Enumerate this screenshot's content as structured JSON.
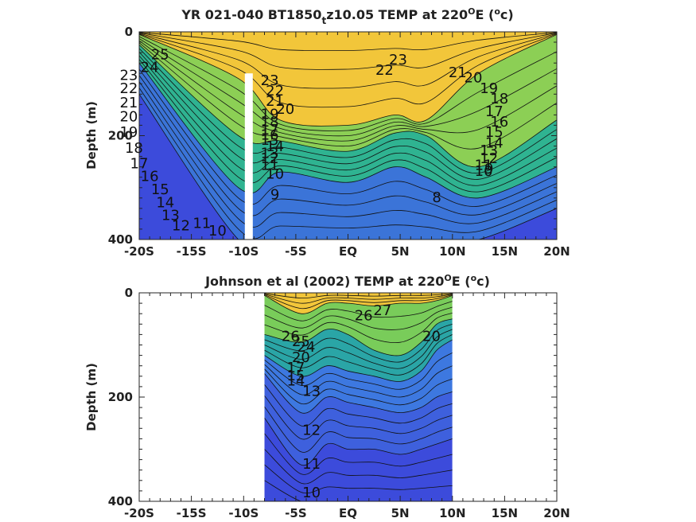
{
  "chart_data": [
    {
      "type": "heatmap",
      "panel": "top",
      "title_main": "YR 021-040 BT1850",
      "title_sub": "t",
      "title_rest": "z10.05 TEMP at 220",
      "title_sup_deg": "O",
      "title_end": "E (",
      "title_sup_unit": "o",
      "title_close": "c)",
      "ylabel": "Depth (m)",
      "xlim": [
        -20,
        20
      ],
      "ylim": [
        0,
        400
      ],
      "y_reversed": true,
      "x_ticks": [
        {
          "value": -20,
          "label": "-20S"
        },
        {
          "value": -15,
          "label": "-15S"
        },
        {
          "value": -10,
          "label": "-10S"
        },
        {
          "value": -5,
          "label": "-5S"
        },
        {
          "value": 0,
          "label": "EQ"
        },
        {
          "value": 5,
          "label": "5N"
        },
        {
          "value": 10,
          "label": "10N"
        },
        {
          "value": 15,
          "label": "15N"
        },
        {
          "value": 20,
          "label": "20N"
        }
      ],
      "y_ticks": [
        {
          "value": 0,
          "label": "0"
        },
        {
          "value": 200,
          "label": "200"
        },
        {
          "value": 400,
          "label": "400"
        }
      ],
      "data_columns": [
        -20,
        -10.5,
        -6.5,
        0,
        4.5,
        7.5,
        12.5,
        20
      ],
      "isotherm_depths": [
        [
          5,
          90,
          170,
          180,
          160,
          170,
          80,
          5
        ],
        [
          25,
          200,
          210,
          230,
          195,
          200,
          260,
          170
        ],
        [
          60,
          300,
          270,
          290,
          260,
          280,
          320,
          260
        ],
        [
          120,
          400,
          400,
          400,
          400,
          400,
          400,
          340
        ]
      ],
      "contour_labels": [
        {
          "x": -18,
          "y": 45,
          "text": "25"
        },
        {
          "x": -19,
          "y": 70,
          "text": "24"
        },
        {
          "x": -21,
          "y": 85,
          "text": "23"
        },
        {
          "x": -21,
          "y": 110,
          "text": "22"
        },
        {
          "x": -21,
          "y": 138,
          "text": "21"
        },
        {
          "x": -21,
          "y": 165,
          "text": "20"
        },
        {
          "x": -21,
          "y": 195,
          "text": "19"
        },
        {
          "x": -20.5,
          "y": 225,
          "text": "18"
        },
        {
          "x": -20,
          "y": 255,
          "text": "17"
        },
        {
          "x": -19,
          "y": 280,
          "text": "16"
        },
        {
          "x": -18,
          "y": 305,
          "text": "15"
        },
        {
          "x": -17.5,
          "y": 330,
          "text": "14"
        },
        {
          "x": -17,
          "y": 355,
          "text": "13"
        },
        {
          "x": -16,
          "y": 375,
          "text": "12"
        },
        {
          "x": -14,
          "y": 370,
          "text": "11"
        },
        {
          "x": -12.5,
          "y": 385,
          "text": "10"
        },
        {
          "x": -7.5,
          "y": 95,
          "text": "23"
        },
        {
          "x": -7,
          "y": 115,
          "text": "22"
        },
        {
          "x": -7,
          "y": 135,
          "text": "21"
        },
        {
          "x": -6,
          "y": 150,
          "text": "20"
        },
        {
          "x": -7.5,
          "y": 160,
          "text": "19"
        },
        {
          "x": -7.5,
          "y": 175,
          "text": "18"
        },
        {
          "x": -7.5,
          "y": 190,
          "text": "17"
        },
        {
          "x": -7.5,
          "y": 200,
          "text": "16"
        },
        {
          "x": -7.5,
          "y": 210,
          "text": "15"
        },
        {
          "x": -7,
          "y": 222,
          "text": "14"
        },
        {
          "x": -7.5,
          "y": 235,
          "text": "13"
        },
        {
          "x": -7.5,
          "y": 245,
          "text": "12"
        },
        {
          "x": -7.5,
          "y": 258,
          "text": "11"
        },
        {
          "x": -7,
          "y": 275,
          "text": "10"
        },
        {
          "x": -7,
          "y": 315,
          "text": "9"
        },
        {
          "x": 3.5,
          "y": 75,
          "text": "22"
        },
        {
          "x": 4.8,
          "y": 55,
          "text": "23"
        },
        {
          "x": 8.5,
          "y": 320,
          "text": "8"
        },
        {
          "x": 10.5,
          "y": 80,
          "text": "21"
        },
        {
          "x": 12,
          "y": 90,
          "text": "20"
        },
        {
          "x": 13.5,
          "y": 110,
          "text": "19"
        },
        {
          "x": 14.5,
          "y": 130,
          "text": "18"
        },
        {
          "x": 14,
          "y": 155,
          "text": "17"
        },
        {
          "x": 14.5,
          "y": 175,
          "text": "16"
        },
        {
          "x": 14,
          "y": 195,
          "text": "15"
        },
        {
          "x": 14,
          "y": 215,
          "text": "14"
        },
        {
          "x": 13.5,
          "y": 230,
          "text": "13"
        },
        {
          "x": 13.5,
          "y": 245,
          "text": "12"
        },
        {
          "x": 13,
          "y": 258,
          "text": "11"
        },
        {
          "x": 13,
          "y": 270,
          "text": "10"
        },
        {
          "x": 13.5,
          "y": 265,
          "text": "9"
        }
      ],
      "land_mask_bar": {
        "x": -9.5,
        "y_top": 80,
        "y_bottom": 400
      },
      "colors": {
        "warm": "#f2c63a",
        "mid": "#2fb391",
        "cool": "#3c4bdb"
      }
    },
    {
      "type": "heatmap",
      "panel": "bottom",
      "title_main": "Johnson et al (2002) TEMP at 220",
      "title_sup_deg": "O",
      "title_end": "E (",
      "title_sup_unit": "o",
      "title_close": "c)",
      "ylabel": "Depth (m)",
      "xlim": [
        -20,
        20
      ],
      "ylim": [
        0,
        400
      ],
      "y_reversed": true,
      "data_xrange": [
        -8,
        10
      ],
      "x_ticks": [
        {
          "value": -20,
          "label": "-20S"
        },
        {
          "value": -15,
          "label": "-15S"
        },
        {
          "value": -10,
          "label": "-10S"
        },
        {
          "value": -5,
          "label": "-5S"
        },
        {
          "value": 0,
          "label": "EQ"
        },
        {
          "value": 5,
          "label": "5N"
        },
        {
          "value": 10,
          "label": "10N"
        },
        {
          "value": 15,
          "label": "15N"
        },
        {
          "value": 20,
          "label": "20N"
        }
      ],
      "y_ticks": [
        {
          "value": 0,
          "label": "0"
        },
        {
          "value": 200,
          "label": "200"
        },
        {
          "value": 400,
          "label": "400"
        }
      ],
      "data_columns": [
        -8,
        -4.5,
        -2,
        0,
        2.5,
        5,
        7,
        8.5,
        10
      ],
      "isotherm_depths": [
        [
          5,
          40,
          20,
          20,
          25,
          20,
          20,
          15,
          5
        ],
        [
          80,
          95,
          70,
          80,
          110,
          120,
          95,
          60,
          50
        ],
        [
          120,
          160,
          140,
          150,
          160,
          170,
          150,
          110,
          90
        ],
        [
          155,
          230,
          200,
          210,
          220,
          230,
          220,
          200,
          190
        ],
        [
          240,
          330,
          290,
          300,
          300,
          310,
          300,
          290,
          280
        ],
        [
          360,
          400,
          400,
          400,
          400,
          400,
          400,
          400,
          400
        ]
      ],
      "contour_labels": [
        {
          "x": 1.5,
          "y": 45,
          "text": "26"
        },
        {
          "x": 3.3,
          "y": 35,
          "text": "27"
        },
        {
          "x": -5.5,
          "y": 85,
          "text": "26"
        },
        {
          "x": -4.5,
          "y": 95,
          "text": "25"
        },
        {
          "x": -4,
          "y": 105,
          "text": "24"
        },
        {
          "x": -4.5,
          "y": 125,
          "text": "20"
        },
        {
          "x": -5,
          "y": 145,
          "text": "17"
        },
        {
          "x": -5,
          "y": 160,
          "text": "15"
        },
        {
          "x": -5,
          "y": 170,
          "text": "14"
        },
        {
          "x": -3.5,
          "y": 190,
          "text": "13"
        },
        {
          "x": -3.5,
          "y": 265,
          "text": "12"
        },
        {
          "x": -3.5,
          "y": 330,
          "text": "11"
        },
        {
          "x": -3.5,
          "y": 385,
          "text": "10"
        },
        {
          "x": 8,
          "y": 85,
          "text": "20"
        }
      ],
      "colors": {
        "warm": "#f2c63a",
        "mid": "#2fb391",
        "cool": "#3c4bdb"
      }
    }
  ]
}
